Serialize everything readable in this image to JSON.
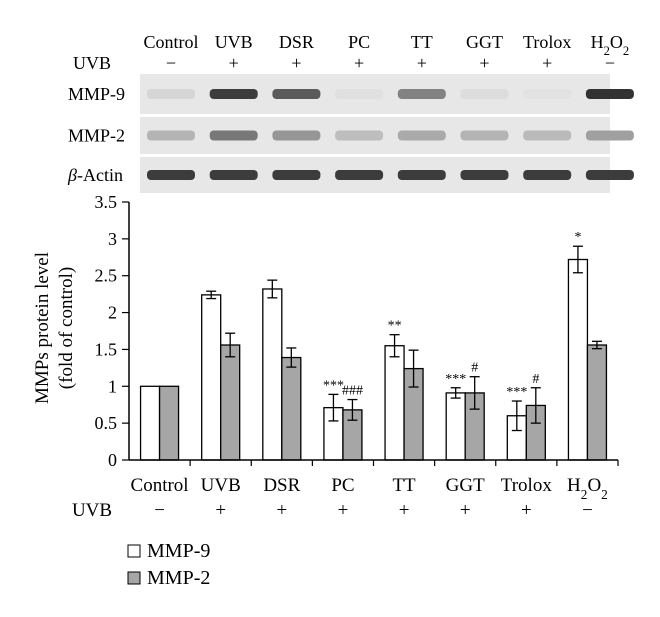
{
  "blot": {
    "lanes": [
      {
        "label": "Control",
        "uvb": "−"
      },
      {
        "label": "UVB",
        "uvb": "+"
      },
      {
        "label": "DSR",
        "uvb": "+"
      },
      {
        "label": "PC",
        "uvb": "+"
      },
      {
        "label": "TT",
        "uvb": "+"
      },
      {
        "label": "GGT",
        "uvb": "+"
      },
      {
        "label": "Trolox",
        "uvb": "+"
      },
      {
        "label": "H₂O₂",
        "uvb": "−"
      }
    ],
    "uvb_label": "UVB",
    "rows": [
      {
        "name": "MMP-9",
        "intensity": [
          0.08,
          0.85,
          0.7,
          0.03,
          0.5,
          0.05,
          0.02,
          0.9
        ]
      },
      {
        "name": "MMP-2",
        "intensity": [
          0.25,
          0.55,
          0.4,
          0.2,
          0.3,
          0.25,
          0.22,
          0.35
        ]
      },
      {
        "name": "β-Actin",
        "intensity": [
          0.85,
          0.85,
          0.85,
          0.85,
          0.85,
          0.85,
          0.85,
          0.85
        ]
      }
    ]
  },
  "chart_data": {
    "type": "bar",
    "categories": [
      "Control",
      "UVB",
      "DSR",
      "PC",
      "TT",
      "GGT",
      "Trolox",
      "H₂O₂"
    ],
    "uvb": [
      "−",
      "+",
      "+",
      "+",
      "+",
      "+",
      "+",
      "−"
    ],
    "uvb_label": "UVB",
    "ylabel_line1": "MMPs protein level",
    "ylabel_line2": "(fold of control)",
    "ylim": [
      0,
      3.5
    ],
    "yticks": [
      "0",
      "0.5",
      "1",
      "1.5",
      "2",
      "2.5",
      "3",
      "3.5"
    ],
    "series": [
      {
        "name": "MMP-9",
        "color": "#ffffff",
        "values": [
          1.0,
          2.24,
          2.32,
          0.71,
          1.55,
          0.91,
          0.6,
          2.72
        ],
        "errors": [
          0,
          0.05,
          0.12,
          0.18,
          0.15,
          0.07,
          0.2,
          0.18
        ],
        "annotations": [
          "",
          "",
          "",
          "***",
          "**",
          "***",
          "***",
          "*"
        ]
      },
      {
        "name": "MMP-2",
        "color": "#a6a6a6",
        "values": [
          1.0,
          1.56,
          1.39,
          0.68,
          1.24,
          0.91,
          0.74,
          1.56
        ],
        "errors": [
          0,
          0.16,
          0.13,
          0.14,
          0.25,
          0.22,
          0.24,
          0.05
        ],
        "annotations": [
          "",
          "",
          "",
          "###",
          "",
          "#",
          "#",
          ""
        ]
      }
    ],
    "legend_placement": "bottom-left"
  }
}
